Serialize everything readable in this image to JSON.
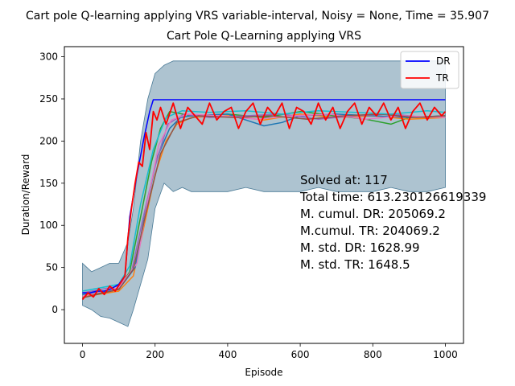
{
  "suptitle": "Cart pole Q-learning applying VRS variable-interval, Noisy = None, Time = 35.907",
  "chart_data": {
    "type": "line",
    "title": "Cart Pole Q-Learning applying VRS",
    "xlabel": "Episode",
    "ylabel": "Duration/Reward",
    "xlim": [
      -50,
      1050
    ],
    "ylim": [
      -40,
      312
    ],
    "xticks": [
      0,
      200,
      400,
      600,
      800,
      1000
    ],
    "yticks": [
      0,
      50,
      100,
      150,
      200,
      250,
      300
    ],
    "grid": false,
    "legend": {
      "placement": "top-right",
      "entries": [
        {
          "label": "DR",
          "color": "#0000ff"
        },
        {
          "label": "TR",
          "color": "#ff0000"
        }
      ]
    },
    "band": {
      "color": "#4a7a96",
      "x": [
        0,
        25,
        50,
        75,
        100,
        125,
        140,
        160,
        180,
        200,
        225,
        250,
        275,
        300,
        350,
        400,
        450,
        500,
        550,
        600,
        650,
        700,
        750,
        800,
        850,
        900,
        950,
        1000
      ],
      "low": [
        5,
        0,
        -8,
        -10,
        -15,
        -20,
        0,
        30,
        60,
        120,
        150,
        140,
        145,
        140,
        140,
        140,
        145,
        140,
        140,
        140,
        145,
        140,
        140,
        140,
        145,
        140,
        140,
        145
      ],
      "high": [
        55,
        45,
        50,
        55,
        55,
        80,
        120,
        200,
        250,
        280,
        290,
        295,
        295,
        295,
        295,
        295,
        295,
        295,
        295,
        295,
        295,
        295,
        295,
        295,
        295,
        295,
        295,
        295
      ]
    },
    "series": [
      {
        "name": "DR",
        "color": "#0000ff",
        "x": [
          0,
          20,
          40,
          60,
          80,
          100,
          117,
          130,
          150,
          170,
          185,
          195,
          200,
          230,
          300,
          400,
          500,
          600,
          700,
          800,
          900,
          1000
        ],
        "y": [
          20,
          20,
          22,
          22,
          25,
          30,
          40,
          110,
          160,
          205,
          235,
          249,
          249,
          249,
          249,
          249,
          249,
          249,
          249,
          249,
          249,
          249
        ]
      },
      {
        "name": "TR",
        "color": "#ff0000",
        "x": [
          0,
          15,
          30,
          45,
          60,
          75,
          90,
          105,
          117,
          125,
          135,
          145,
          155,
          165,
          175,
          185,
          195,
          205,
          215,
          230,
          250,
          270,
          290,
          310,
          330,
          350,
          370,
          390,
          410,
          430,
          450,
          470,
          490,
          510,
          530,
          550,
          570,
          590,
          610,
          630,
          650,
          670,
          690,
          710,
          730,
          750,
          770,
          790,
          810,
          830,
          850,
          870,
          890,
          910,
          930,
          950,
          970,
          990,
          1000
        ],
        "y": [
          12,
          20,
          15,
          25,
          18,
          28,
          22,
          32,
          40,
          85,
          120,
          150,
          175,
          170,
          210,
          190,
          235,
          225,
          240,
          220,
          245,
          215,
          240,
          230,
          220,
          245,
          225,
          235,
          240,
          215,
          235,
          245,
          220,
          240,
          230,
          245,
          215,
          240,
          235,
          220,
          245,
          225,
          240,
          215,
          235,
          245,
          220,
          240,
          230,
          245,
          225,
          240,
          215,
          235,
          245,
          225,
          240,
          230,
          235
        ]
      },
      {
        "name": "",
        "color": "#2ca02c",
        "x": [
          0,
          100,
          130,
          160,
          190,
          215,
          240,
          300,
          400,
          500,
          600,
          700,
          780,
          850,
          900,
          1000
        ],
        "y": [
          15,
          25,
          45,
          110,
          175,
          215,
          235,
          230,
          232,
          228,
          235,
          230,
          226,
          220,
          228,
          230
        ]
      },
      {
        "name": "",
        "color": "#ff7f0e",
        "x": [
          0,
          100,
          140,
          170,
          200,
          230,
          260,
          300,
          400,
          500,
          600,
          700,
          800,
          900,
          1000
        ],
        "y": [
          15,
          22,
          40,
          100,
          160,
          200,
          220,
          228,
          230,
          225,
          232,
          228,
          230,
          226,
          228
        ]
      },
      {
        "name": "",
        "color": "#1f77b4",
        "x": [
          0,
          100,
          145,
          175,
          205,
          240,
          270,
          300,
          400,
          450,
          500,
          550,
          600,
          700,
          800,
          900,
          1000
        ],
        "y": [
          18,
          24,
          50,
          120,
          180,
          215,
          228,
          230,
          232,
          225,
          218,
          222,
          230,
          232,
          230,
          228,
          230
        ]
      },
      {
        "name": "",
        "color": "#9467bd",
        "x": [
          0,
          100,
          135,
          165,
          200,
          235,
          280,
          350,
          450,
          550,
          650,
          750,
          850,
          950,
          1000
        ],
        "y": [
          20,
          28,
          45,
          105,
          170,
          220,
          232,
          228,
          230,
          232,
          226,
          230,
          232,
          228,
          230
        ]
      },
      {
        "name": "",
        "color": "#e377c2",
        "x": [
          0,
          100,
          150,
          180,
          210,
          245,
          290,
          380,
          480,
          580,
          680,
          780,
          880,
          1000
        ],
        "y": [
          16,
          26,
          55,
          130,
          195,
          225,
          232,
          230,
          226,
          230,
          232,
          226,
          230,
          228
        ]
      },
      {
        "name": "",
        "color": "#8c564b",
        "x": [
          0,
          100,
          140,
          175,
          215,
          260,
          320,
          420,
          520,
          620,
          720,
          820,
          920,
          1000
        ],
        "y": [
          14,
          24,
          48,
          115,
          185,
          222,
          230,
          228,
          230,
          226,
          230,
          232,
          228,
          230
        ]
      },
      {
        "name": "",
        "color": "#17becf",
        "x": [
          0,
          100,
          130,
          160,
          195,
          230,
          275,
          350,
          450,
          550,
          650,
          750,
          850,
          950,
          1000
        ],
        "y": [
          22,
          30,
          52,
          125,
          190,
          228,
          236,
          234,
          236,
          232,
          236,
          234,
          232,
          236,
          234
        ]
      }
    ],
    "annotations": [
      "Solved at: 117",
      "Total time: 613.230126619339",
      "M. cumul. DR: 205069.2",
      "M.cumul. TR: 204069.2",
      "M. std. DR: 1628.99",
      "M. std. TR: 1648.5"
    ]
  }
}
